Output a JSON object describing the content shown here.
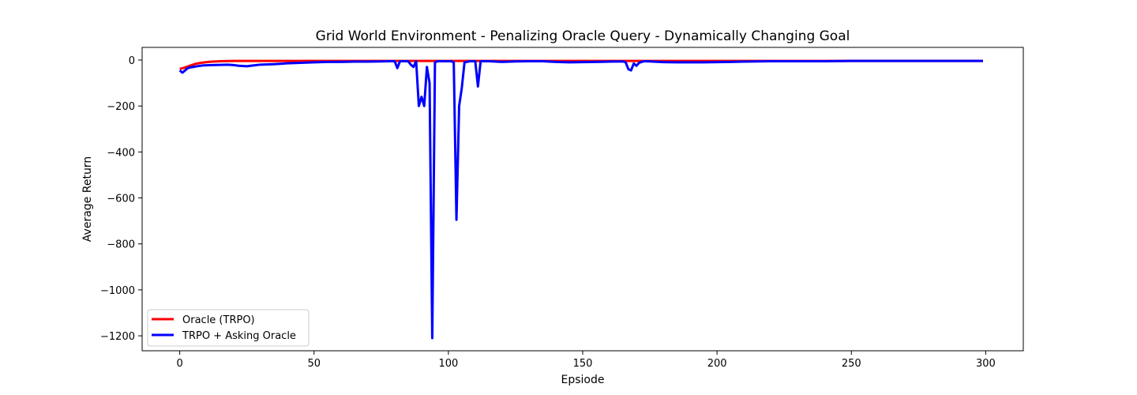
{
  "chart_data": {
    "type": "line",
    "title": "Grid World Environment - Penalizing Oracle Query - Dynamically Changing Goal",
    "xlabel": "Epsiode",
    "ylabel": "Average Return",
    "xlim": [
      -14,
      314
    ],
    "ylim": [
      -1265,
      55
    ],
    "xticks": [
      0,
      50,
      100,
      150,
      200,
      250,
      300
    ],
    "yticks": [
      0,
      -200,
      -400,
      -600,
      -800,
      -1000,
      -1200
    ],
    "xtick_labels": [
      "0",
      "50",
      "100",
      "150",
      "200",
      "250",
      "300"
    ],
    "ytick_labels": [
      "0",
      "−200",
      "−400",
      "−600",
      "−800",
      "−1000",
      "−1200"
    ],
    "grid": false,
    "legend_position": "lower-left",
    "series": [
      {
        "name": "Oracle (TRPO)",
        "color": "#ff0000",
        "x": [
          0,
          1,
          2,
          3,
          4,
          5,
          6,
          8,
          10,
          12,
          15,
          20,
          30,
          50,
          80,
          100,
          150,
          200,
          250,
          299
        ],
        "y": [
          -38,
          -36,
          -32,
          -28,
          -24,
          -20,
          -16,
          -12,
          -9,
          -7,
          -5,
          -4,
          -4,
          -4,
          -4,
          -4,
          -4,
          -4,
          -4,
          -4
        ]
      },
      {
        "name": "TRPO + Asking Oracle",
        "color": "#0000ff",
        "x": [
          0,
          1,
          2,
          3,
          4,
          5,
          7,
          9,
          12,
          15,
          18,
          20,
          22,
          25,
          27,
          30,
          33,
          35,
          38,
          40,
          45,
          50,
          55,
          60,
          65,
          70,
          75,
          78,
          80,
          81,
          82,
          83,
          84,
          85,
          86,
          87,
          88,
          89,
          90,
          91,
          92,
          93,
          94,
          95,
          96,
          97,
          98,
          99,
          100,
          101,
          102,
          103,
          104,
          105,
          106,
          107,
          108,
          109,
          110,
          111,
          112,
          115,
          120,
          125,
          130,
          135,
          140,
          145,
          150,
          155,
          160,
          165,
          166,
          167,
          168,
          169,
          170,
          171,
          172,
          173,
          175,
          180,
          185,
          190,
          195,
          200,
          205,
          210,
          215,
          220,
          225,
          230,
          240,
          250,
          260,
          270,
          280,
          290,
          299
        ],
        "y": [
          -45,
          -55,
          -45,
          -35,
          -32,
          -30,
          -26,
          -23,
          -22,
          -21,
          -20,
          -22,
          -25,
          -27,
          -24,
          -20,
          -19,
          -18,
          -16,
          -14,
          -12,
          -10,
          -8,
          -8,
          -7,
          -7,
          -6,
          -5,
          -5,
          -35,
          -5,
          -5,
          -5,
          -5,
          -20,
          -30,
          -5,
          -200,
          -160,
          -200,
          -30,
          -100,
          -1210,
          -10,
          -5,
          -5,
          -5,
          -5,
          -5,
          -5,
          -10,
          -695,
          -200,
          -120,
          -10,
          -8,
          -5,
          -5,
          -5,
          -115,
          -5,
          -5,
          -8,
          -6,
          -5,
          -5,
          -8,
          -10,
          -9,
          -8,
          -7,
          -6,
          -10,
          -40,
          -45,
          -15,
          -25,
          -12,
          -8,
          -5,
          -6,
          -9,
          -10,
          -10,
          -10,
          -9,
          -8,
          -7,
          -6,
          -5,
          -5,
          -5,
          -5,
          -4,
          -4,
          -4,
          -4,
          -4,
          -4
        ]
      }
    ]
  }
}
